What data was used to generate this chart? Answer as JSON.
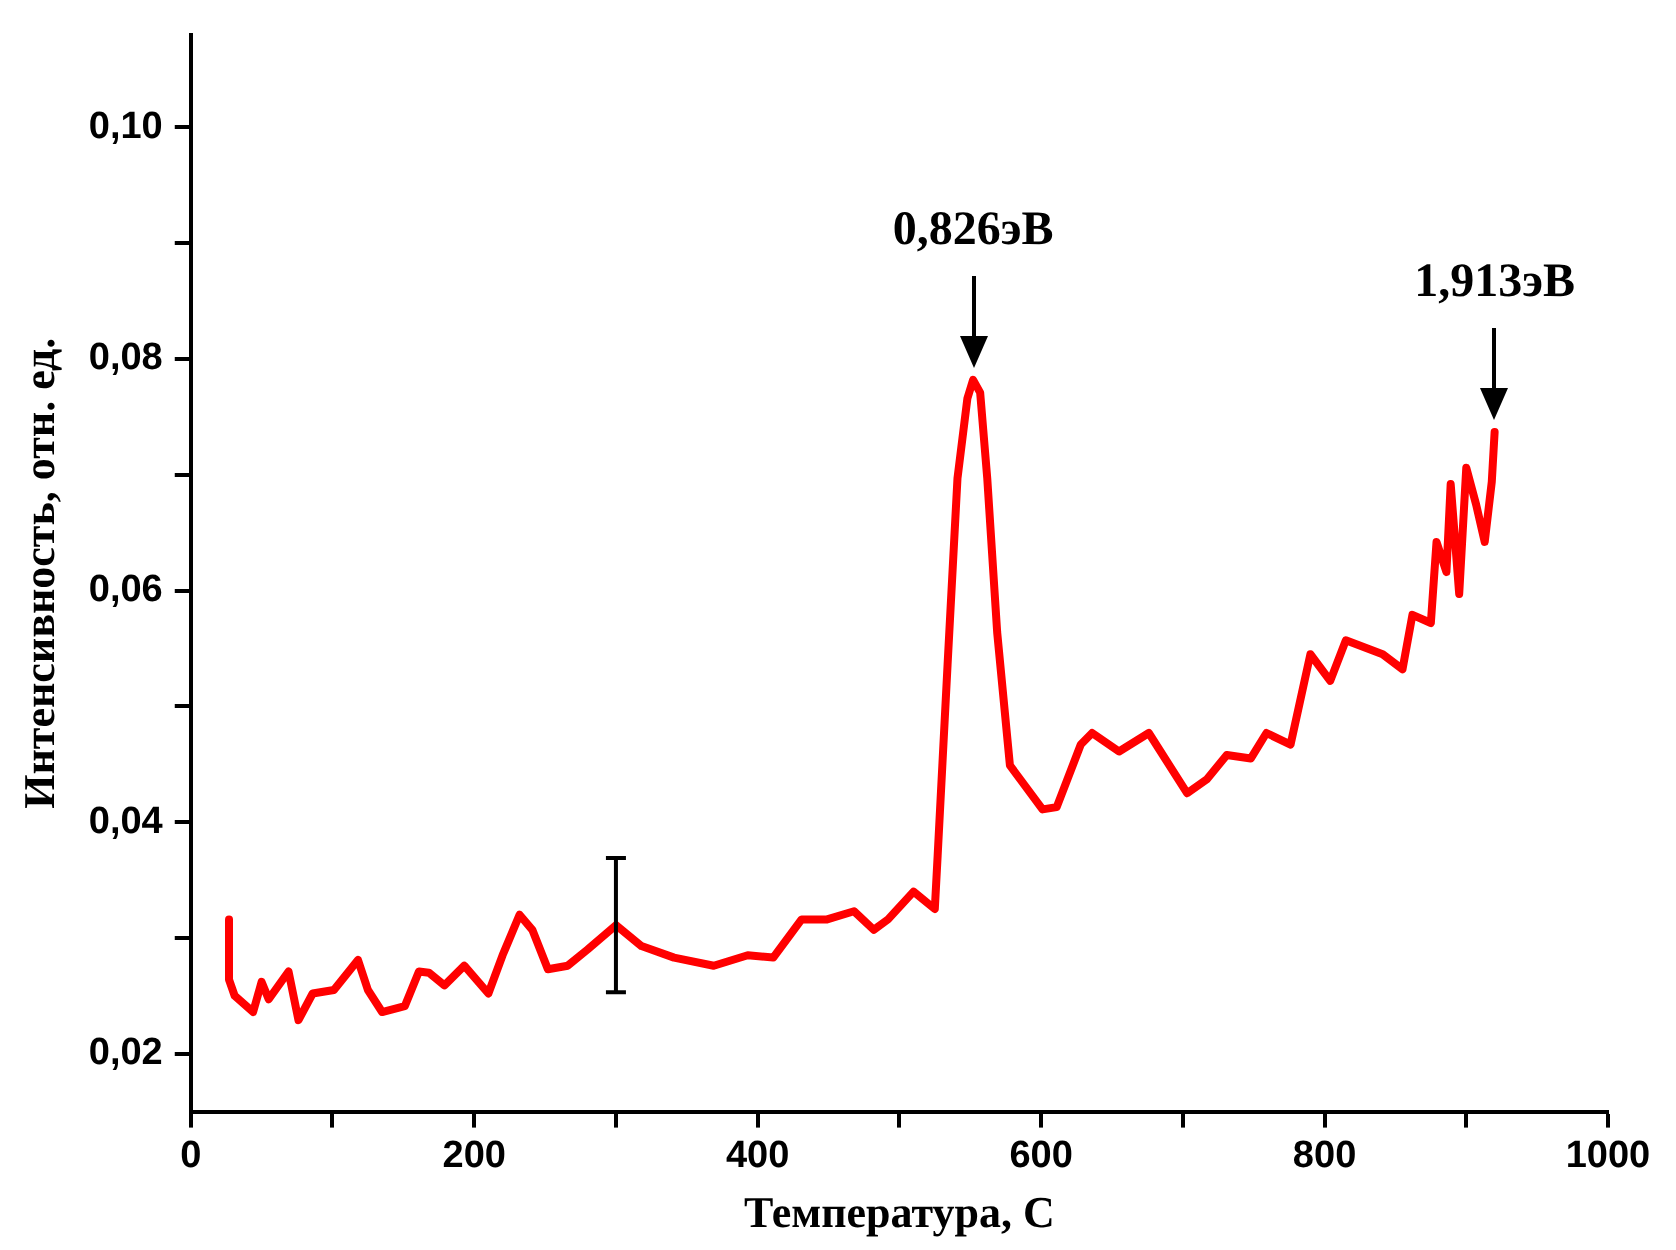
{
  "chart_data": {
    "type": "line",
    "xlabel": "Температура, С",
    "ylabel": "Интенсивность, отн. ед.",
    "xlim": [
      0,
      1000
    ],
    "ylim": [
      0.015,
      0.108
    ],
    "xticks": [
      0,
      {
        "value": 100,
        "label": null
      },
      200,
      {
        "value": 300,
        "label": null
      },
      400,
      {
        "value": 500,
        "label": null
      },
      600,
      {
        "value": 700,
        "label": null
      },
      800,
      {
        "value": 900,
        "label": null
      },
      1000
    ],
    "yticks": [
      {
        "value": 0.02,
        "label": "0,02"
      },
      {
        "value": 0.03,
        "label": null
      },
      {
        "value": 0.04,
        "label": "0,04"
      },
      {
        "value": 0.05,
        "label": null
      },
      {
        "value": 0.06,
        "label": "0,06"
      },
      {
        "value": 0.07,
        "label": null
      },
      {
        "value": 0.08,
        "label": "0,08"
      },
      {
        "value": 0.09,
        "label": null
      },
      {
        "value": 0.1,
        "label": "0,10"
      }
    ],
    "grid": false,
    "legend": false,
    "marker": "none",
    "line_style": "solid",
    "series": [
      {
        "color": "#ff0000",
        "x": [
          27,
          27,
          31,
          44,
          50,
          55,
          69,
          76,
          86,
          101,
          118,
          125,
          135,
          151,
          161,
          168,
          179,
          193,
          210,
          220,
          232,
          241,
          252,
          266,
          280,
          300,
          318,
          341,
          369,
          393,
          411,
          431,
          449,
          468,
          482,
          492,
          510,
          525,
          527,
          534,
          541,
          548,
          552,
          557,
          562,
          569,
          578,
          601,
          611,
          628,
          636,
          655,
          676,
          703,
          717,
          731,
          748,
          759,
          776,
          790,
          804,
          815,
          841,
          855,
          862,
          875,
          879,
          886,
          889,
          895,
          900,
          907,
          913,
          918,
          920
        ],
        "values": [
          0.0316,
          0.0264,
          0.025,
          0.0236,
          0.0262,
          0.0247,
          0.0271,
          0.0229,
          0.0252,
          0.0255,
          0.0281,
          0.0255,
          0.0236,
          0.0241,
          0.0271,
          0.027,
          0.0259,
          0.0276,
          0.0252,
          0.0285,
          0.032,
          0.0307,
          0.0273,
          0.0276,
          0.029,
          0.0311,
          0.0293,
          0.0283,
          0.0276,
          0.0285,
          0.0283,
          0.0316,
          0.0316,
          0.0323,
          0.0307,
          0.0316,
          0.034,
          0.0325,
          0.0371,
          0.0536,
          0.0697,
          0.0766,
          0.0782,
          0.0771,
          0.0697,
          0.0564,
          0.0449,
          0.0411,
          0.0413,
          0.0467,
          0.0477,
          0.0461,
          0.0477,
          0.0425,
          0.0437,
          0.0458,
          0.0455,
          0.0477,
          0.0467,
          0.0545,
          0.0522,
          0.0557,
          0.0545,
          0.0532,
          0.0579,
          0.0572,
          0.0642,
          0.0616,
          0.0692,
          0.0597,
          0.0706,
          0.0674,
          0.0642,
          0.0694,
          0.0737
        ],
        "errors": [
          null,
          null,
          null,
          null,
          null,
          null,
          null,
          null,
          null,
          null,
          null,
          null,
          null,
          null,
          null,
          null,
          null,
          null,
          null,
          null,
          null,
          null,
          null,
          null,
          null,
          0.0058,
          null,
          null,
          null,
          null,
          null,
          null,
          null,
          null,
          null,
          null,
          null,
          null,
          null,
          null,
          null,
          null,
          null,
          null,
          null,
          null,
          null,
          null,
          null,
          null,
          null,
          null,
          null,
          null,
          null,
          null,
          null,
          null,
          null,
          null,
          null,
          null,
          null,
          null,
          null,
          null,
          null,
          null,
          null,
          null,
          null,
          null,
          null,
          null,
          null
        ]
      }
    ],
    "annotations": [
      {
        "text": "0,826эВ",
        "x": 552,
        "y": 0.0782
      },
      {
        "text": "1,913эВ",
        "x": 920,
        "y": 0.0737
      }
    ]
  }
}
